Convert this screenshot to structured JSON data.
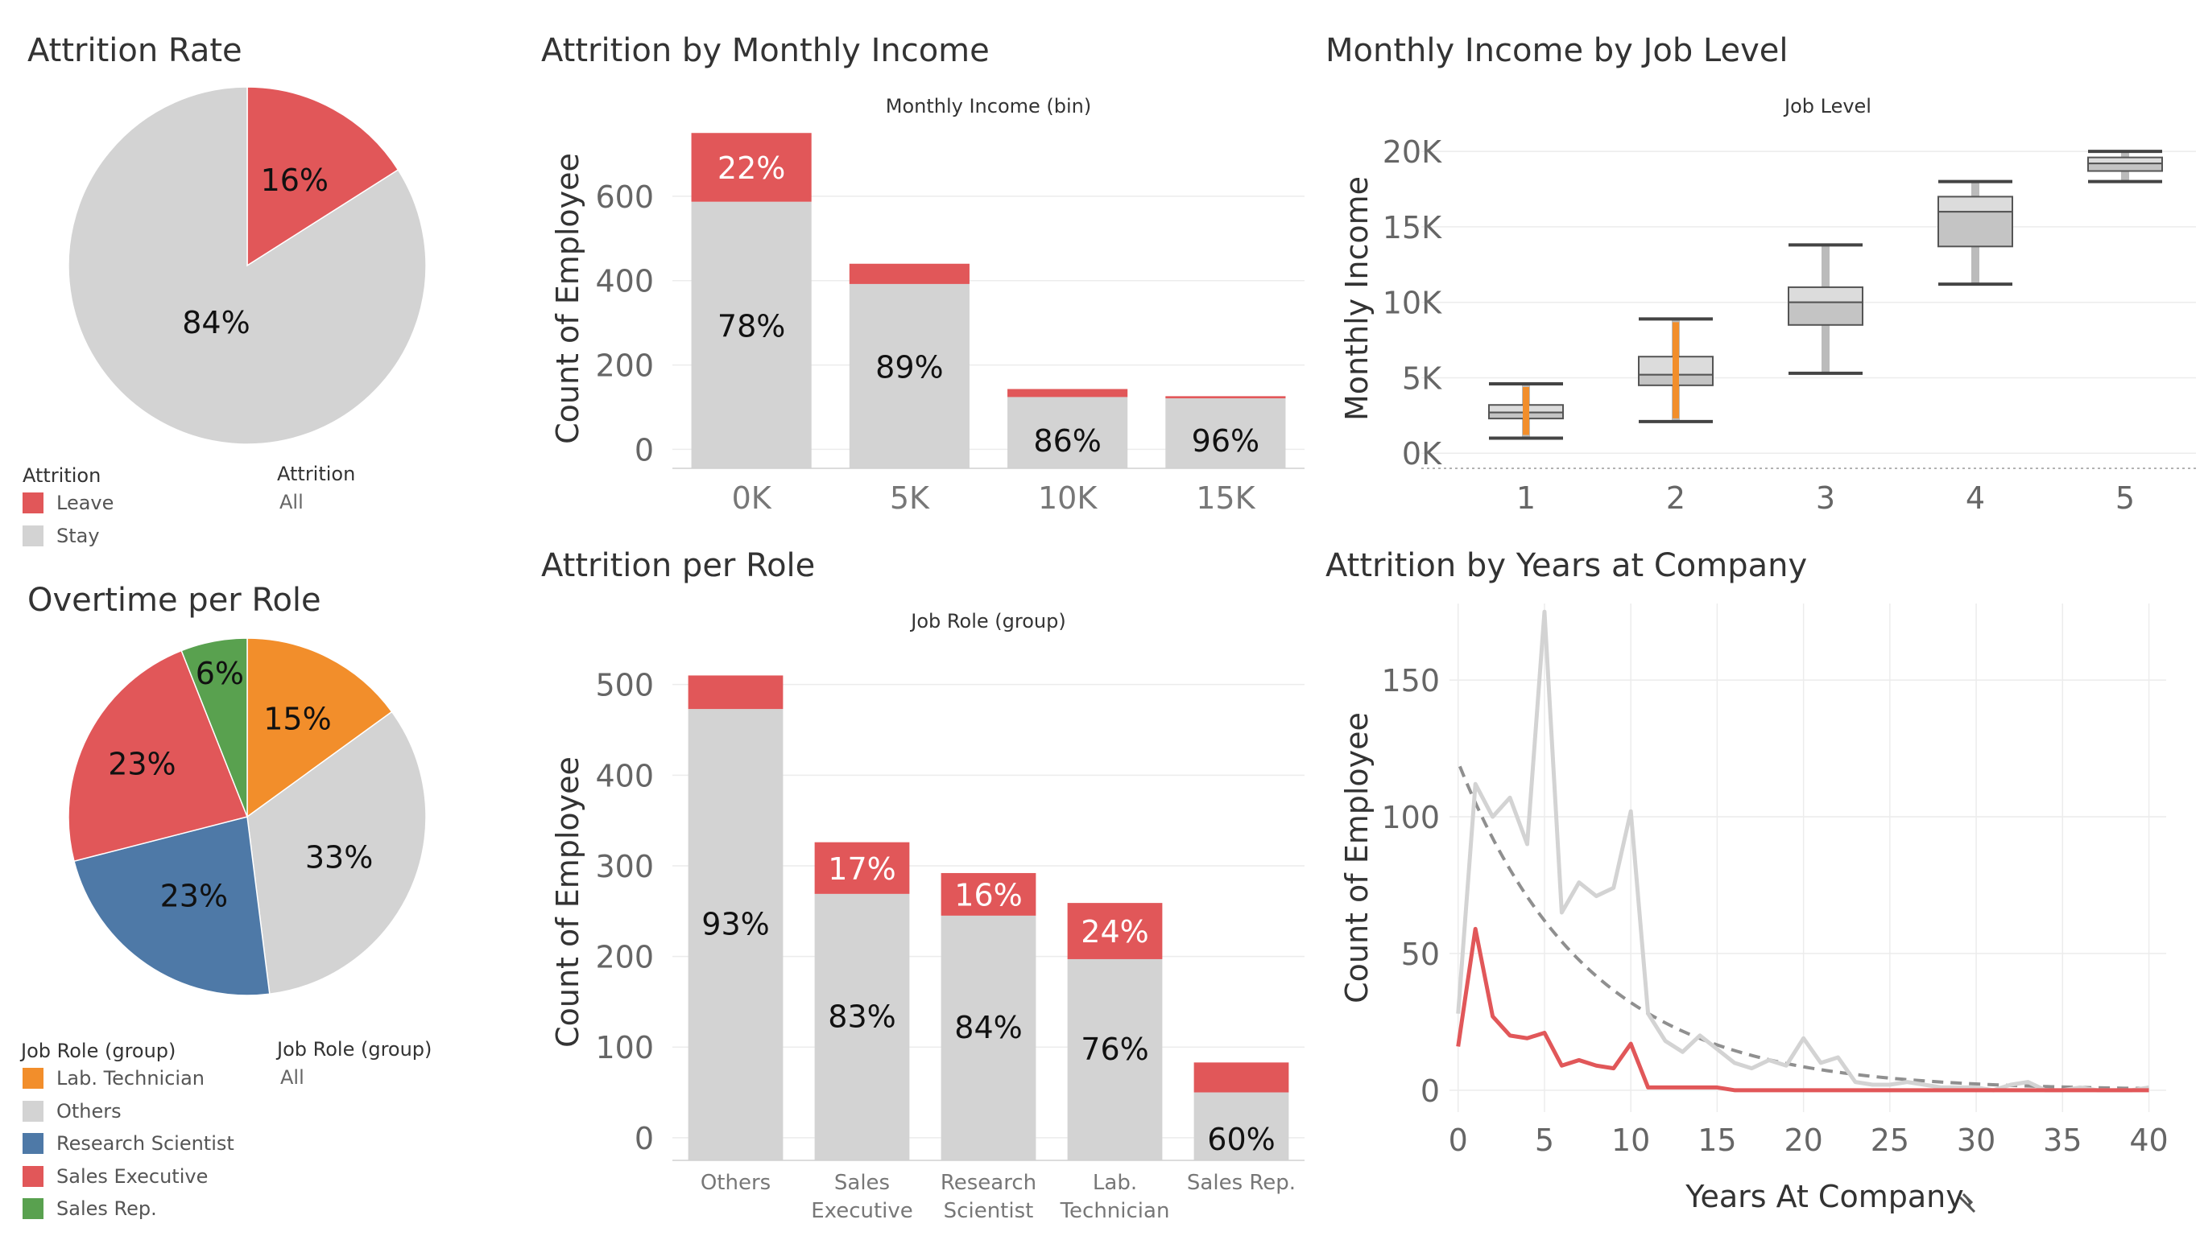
{
  "colors": {
    "leave": "#e15759",
    "stay": "#d3d3d3",
    "lab_technician": "#f28e2b",
    "others": "#d3d3d3",
    "research_scientist": "#4e79a7",
    "sales_executive": "#e15759",
    "sales_rep": "#59a14f",
    "box": "#9a9a9a",
    "trend": "#8f8f8f"
  },
  "panels": {
    "attrition_rate": {
      "title": "Attrition Rate",
      "legend_title": "Attrition",
      "legend_items": [
        "Leave",
        "Stay"
      ],
      "filter_title": "Attrition",
      "filter_value": "All"
    },
    "overtime_role": {
      "title": "Overtime per Role",
      "legend_title": "Job Role (group)",
      "legend_items": [
        "Lab. Technician",
        "Others",
        "Research Scientist",
        "Sales Executive",
        "Sales Rep."
      ],
      "filter_title": "Job Role (group)",
      "filter_value": "All"
    },
    "income": {
      "title": "Attrition by Monthly Income",
      "header": "Monthly Income (bin)",
      "ylabel": "Count of Employee"
    },
    "job_level": {
      "title": "Monthly Income by Job Level",
      "header": "Job Level",
      "ylabel": "Monthly Income"
    },
    "role": {
      "title": "Attrition per Role",
      "header": "Job Role (group)",
      "ylabel": "Count of Employee"
    },
    "years": {
      "title": "Attrition by Years at Company",
      "xlabel": "Years At Company",
      "ylabel": "Count of Employee"
    }
  },
  "chart_data": [
    {
      "id": "attrition_rate",
      "type": "pie",
      "labels": [
        "Leave",
        "Stay"
      ],
      "values": [
        16,
        84
      ],
      "value_labels": [
        "16%",
        "84%"
      ]
    },
    {
      "id": "overtime_role",
      "type": "pie",
      "labels": [
        "Lab. Technician",
        "Others",
        "Research Scientist",
        "Sales Executive",
        "Sales Rep."
      ],
      "values": [
        15,
        33,
        23,
        23,
        6
      ],
      "value_labels": [
        "15%",
        "33%",
        "23%",
        "23%",
        "6%"
      ]
    },
    {
      "id": "income",
      "type": "bar",
      "stacked": true,
      "categories": [
        "0K",
        "5K",
        "10K",
        "15K"
      ],
      "series": [
        {
          "name": "Stay",
          "values": [
            587,
            392,
            124,
            121
          ]
        },
        {
          "name": "Leave",
          "values": [
            163,
            48,
            19,
            5
          ]
        }
      ],
      "stay_labels": [
        "78%",
        "89%",
        "86%",
        "96%"
      ],
      "leave_labels": [
        "22%",
        "",
        "",
        ""
      ],
      "yticks": [
        0,
        200,
        400,
        600
      ],
      "ylim": [
        -45,
        760
      ]
    },
    {
      "id": "job_level",
      "type": "box",
      "categories": [
        "1",
        "2",
        "3",
        "4",
        "5"
      ],
      "boxes": [
        {
          "min": 1000,
          "q1": 2300,
          "median": 2700,
          "q3": 3200,
          "max": 4600
        },
        {
          "min": 2100,
          "q1": 4500,
          "median": 5200,
          "q3": 6400,
          "max": 8900
        },
        {
          "min": 5300,
          "q1": 8500,
          "median": 10000,
          "q3": 11000,
          "max": 13800
        },
        {
          "min": 11200,
          "q1": 13700,
          "median": 16000,
          "q3": 17000,
          "max": 18000
        },
        {
          "min": 18000,
          "q1": 18700,
          "median": 19200,
          "q3": 19600,
          "max": 20000
        }
      ],
      "yticks": [
        0,
        5000,
        10000,
        15000,
        20000
      ],
      "ytick_labels": [
        "0K",
        "5K",
        "10K",
        "15K",
        "20K"
      ],
      "ylim": [
        -1000,
        21500
      ]
    },
    {
      "id": "role",
      "type": "bar",
      "stacked": true,
      "categories": [
        "Others",
        "Sales Executive",
        "Research Scientist",
        "Lab. Technician",
        "Sales Rep."
      ],
      "category_lines": [
        [
          "Others"
        ],
        [
          "Sales",
          "Executive"
        ],
        [
          "Research",
          "Scientist"
        ],
        [
          "Lab.",
          "Technician"
        ],
        [
          "Sales Rep."
        ]
      ],
      "series": [
        {
          "name": "Stay",
          "values": [
            473,
            269,
            245,
            197,
            50
          ]
        },
        {
          "name": "Leave",
          "values": [
            37,
            57,
            47,
            62,
            33
          ]
        }
      ],
      "stay_labels": [
        "93%",
        "83%",
        "84%",
        "76%",
        "60%"
      ],
      "leave_labels": [
        "",
        "17%",
        "16%",
        "24%",
        ""
      ],
      "yticks": [
        0,
        100,
        200,
        300,
        400,
        500
      ],
      "ylim": [
        -25,
        545
      ]
    },
    {
      "id": "years",
      "type": "line",
      "x": [
        0,
        1,
        2,
        3,
        4,
        5,
        6,
        7,
        8,
        9,
        10,
        11,
        12,
        13,
        14,
        15,
        16,
        17,
        18,
        19,
        20,
        21,
        22,
        23,
        24,
        25,
        26,
        27,
        28,
        29,
        30,
        31,
        32,
        33,
        34,
        35,
        36,
        37,
        38,
        39,
        40
      ],
      "series": [
        {
          "name": "Stay",
          "values": [
            28,
            112,
            100,
            107,
            90,
            175,
            65,
            76,
            71,
            74,
            102,
            28,
            18,
            14,
            20,
            15,
            10,
            8,
            11,
            9,
            19,
            10,
            12,
            3,
            2,
            2,
            3,
            2,
            1,
            1,
            1,
            0,
            2,
            3,
            0,
            0,
            1,
            0,
            0,
            0,
            1
          ]
        },
        {
          "name": "Leave",
          "values": [
            16,
            59,
            27,
            20,
            19,
            21,
            9,
            11,
            9,
            8,
            17,
            1,
            1,
            1,
            1,
            1,
            0,
            0,
            0,
            0,
            0,
            0,
            0,
            0,
            0,
            0,
            0,
            0,
            0,
            0,
            0,
            0,
            0,
            0,
            0,
            0,
            0,
            0,
            0,
            0,
            0
          ]
        }
      ],
      "trend_line": "dashed",
      "xticks": [
        0,
        5,
        10,
        15,
        20,
        25,
        30,
        35,
        40
      ],
      "yticks": [
        0,
        50,
        100,
        150
      ],
      "xlim": [
        -0.5,
        41
      ],
      "ylim": [
        -8,
        178
      ]
    }
  ]
}
